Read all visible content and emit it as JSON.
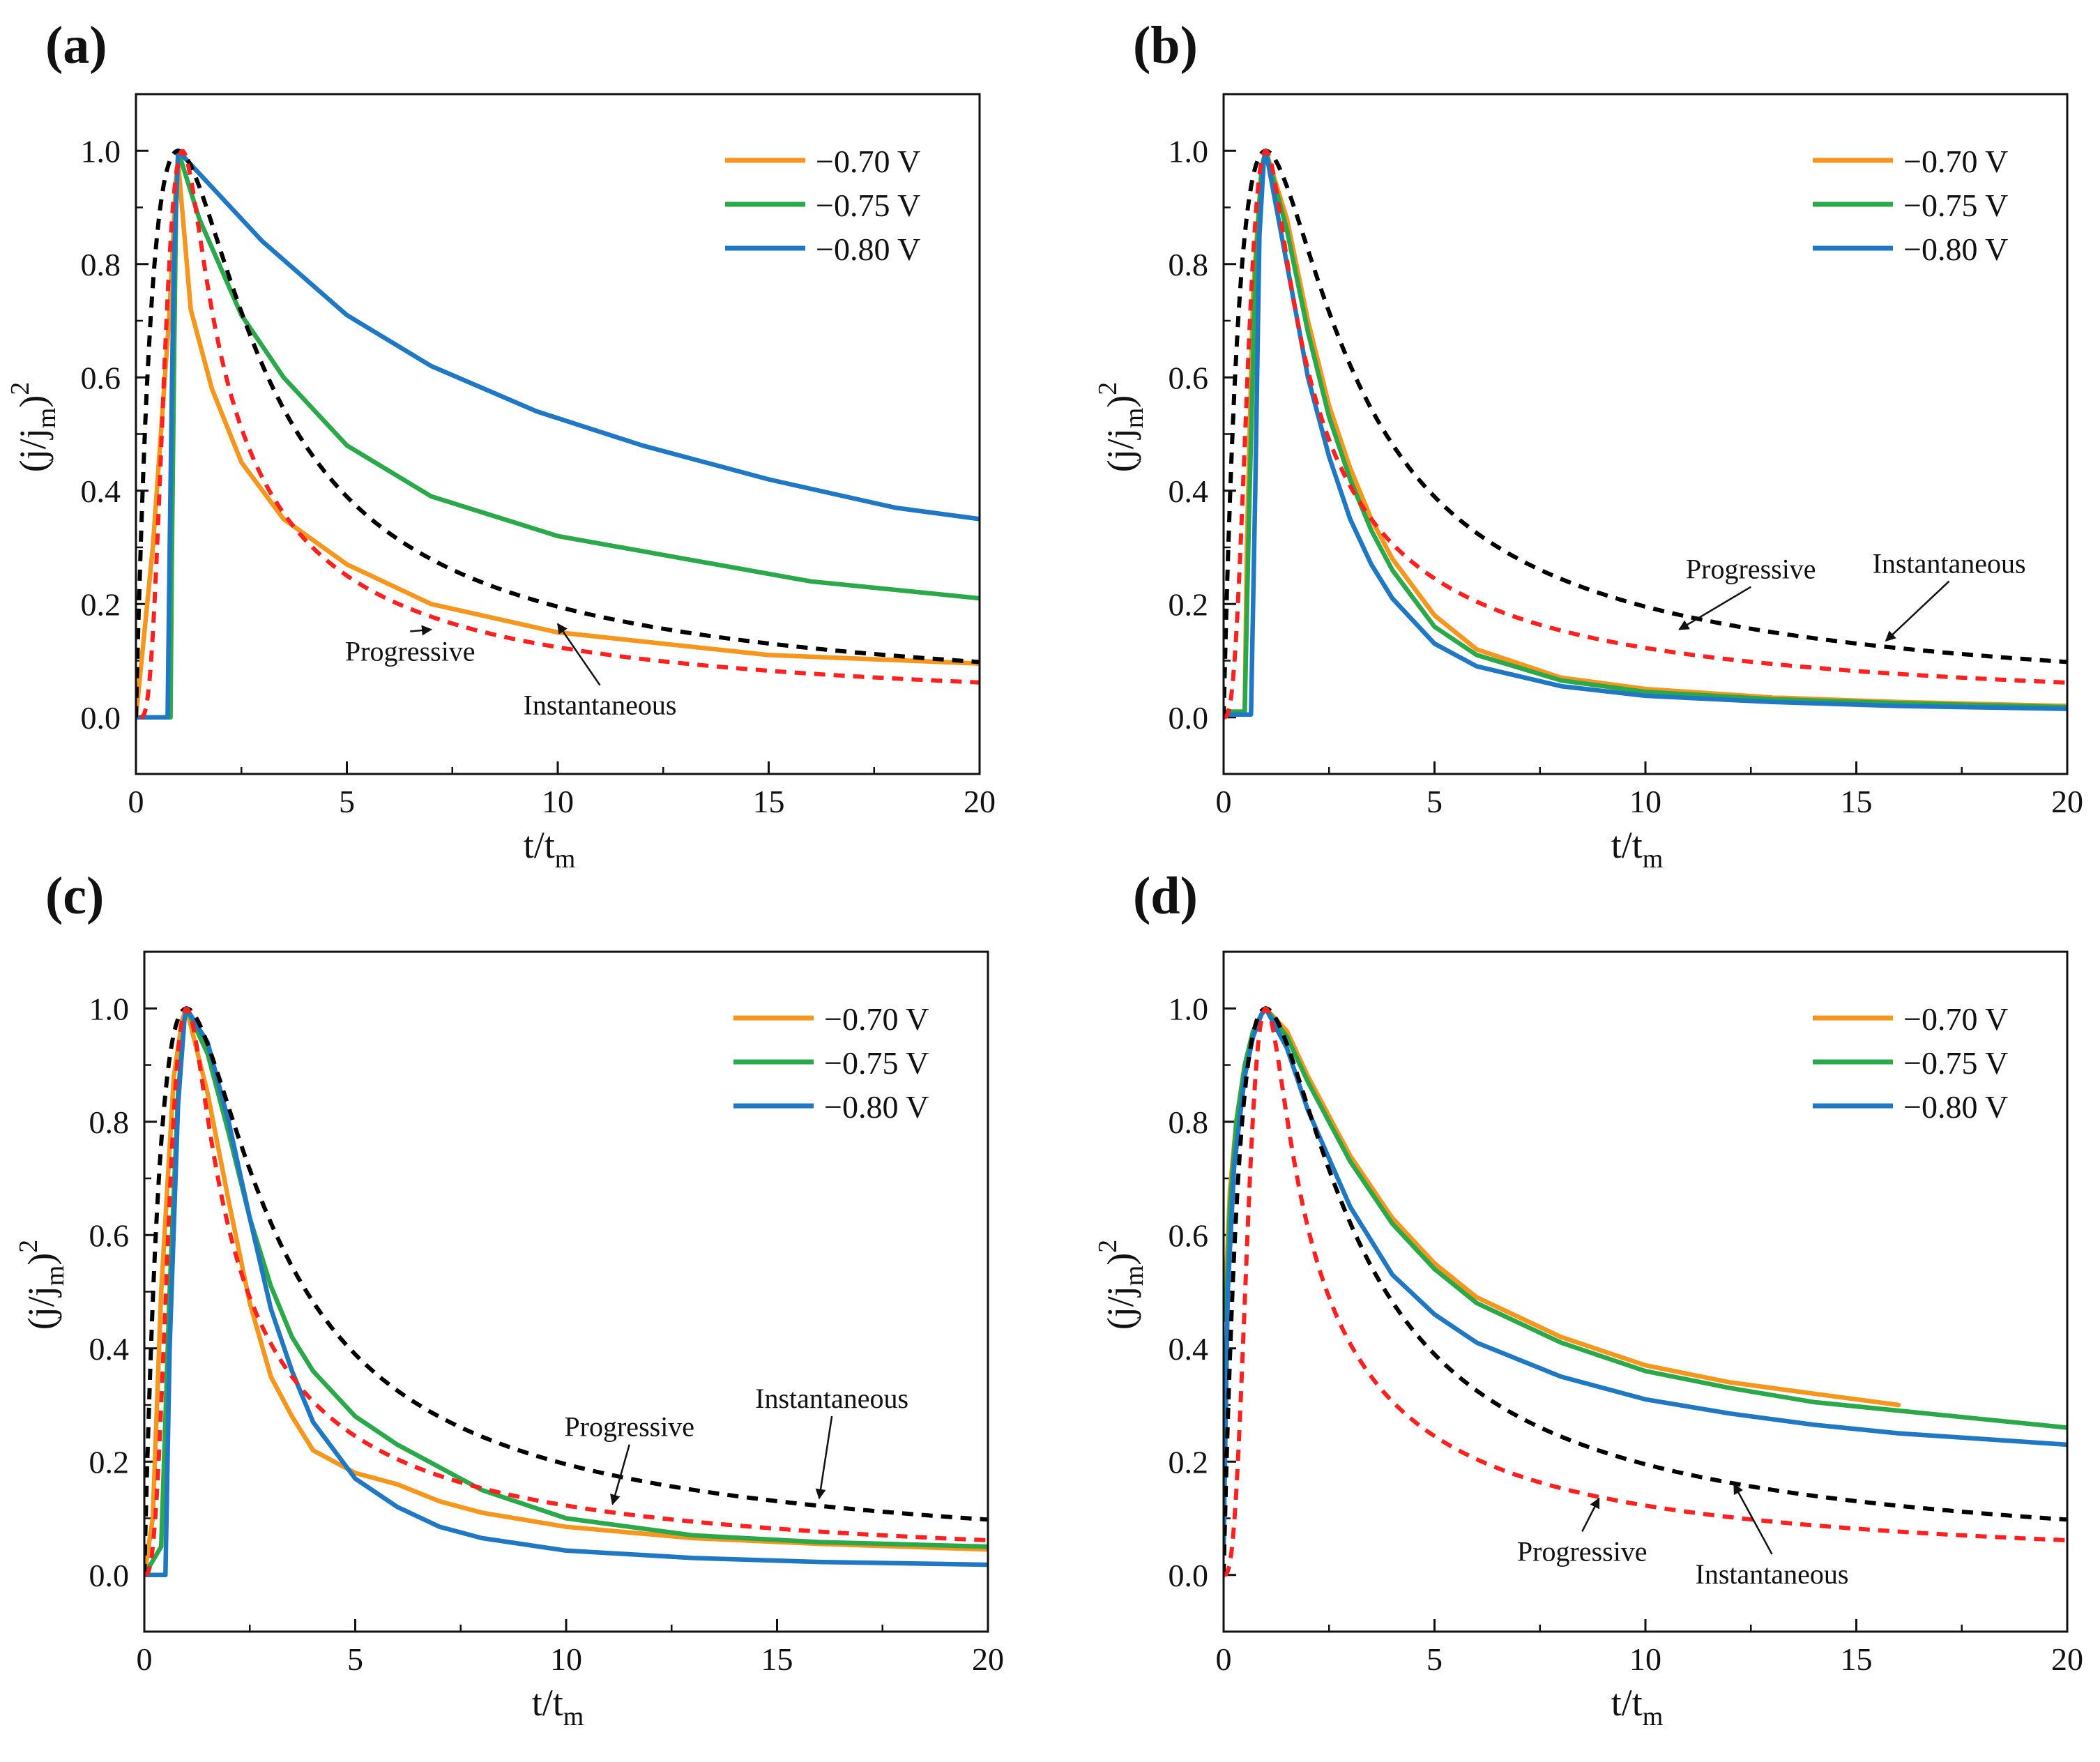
{
  "figure": {
    "colors": {
      "v070": "#f5961e",
      "v075": "#2aa84a",
      "v080": "#1f78c1",
      "instantaneous": "#000000",
      "progressive": "#ff2020"
    }
  },
  "chart_data": [
    {
      "panel": "(a)",
      "type": "line",
      "xlabel": "t/t",
      "xlabel_sub": "m",
      "ylabel_main": "(j/j",
      "ylabel_sub": "m",
      "ylabel_close": ")",
      "ylabel_sup": "2",
      "xlim": [
        0,
        20
      ],
      "ylim": [
        -0.1,
        1.1
      ],
      "xticks": [
        "0",
        "5",
        "10",
        "15",
        "20"
      ],
      "yticks": [
        "0.0",
        "0.2",
        "0.4",
        "0.6",
        "0.8",
        "1.0"
      ],
      "legend": {
        "position": "top-right",
        "entries": [
          "−0.70 V",
          "−0.75 V",
          "−0.80 V"
        ]
      },
      "series": [
        {
          "name": "−0.70 V",
          "color": "#f5961e",
          "style": "solid",
          "x": [
            0,
            0.4,
            0.8,
            0.95,
            1.0,
            1.3,
            1.8,
            2.5,
            3.5,
            5,
            7,
            10,
            15,
            20
          ],
          "y": [
            0,
            0.3,
            0.72,
            0.95,
            0.98,
            0.72,
            0.58,
            0.45,
            0.35,
            0.27,
            0.2,
            0.15,
            0.11,
            0.095
          ]
        },
        {
          "name": "−0.75 V",
          "color": "#2aa84a",
          "style": "solid",
          "x": [
            0,
            0.82,
            0.85,
            0.9,
            0.95,
            1.0,
            1.5,
            2.5,
            3.5,
            5,
            7,
            10,
            13,
            16,
            20
          ],
          "y": [
            0,
            0,
            0.27,
            0.6,
            0.9,
            1.0,
            0.88,
            0.71,
            0.6,
            0.48,
            0.39,
            0.32,
            0.28,
            0.24,
            0.21
          ]
        },
        {
          "name": "−0.80 V",
          "color": "#1f78c1",
          "style": "solid",
          "x": [
            0,
            0.75,
            0.8,
            0.85,
            0.9,
            1.0,
            2,
            3,
            5,
            7,
            9.5,
            12,
            15,
            18,
            20
          ],
          "y": [
            0,
            0,
            0.3,
            0.57,
            0.8,
            1.0,
            0.92,
            0.84,
            0.71,
            0.62,
            0.54,
            0.48,
            0.42,
            0.37,
            0.35
          ]
        },
        {
          "name": "Instantaneous",
          "color": "#000000",
          "style": "dashed",
          "model": "instantaneous",
          "t_shift": 0
        },
        {
          "name": "Progressive",
          "color": "#ff2020",
          "style": "dashed",
          "model": "progressive",
          "t_shift": 0.1
        }
      ],
      "annotations": [
        {
          "text": "Progressive",
          "x": 6.5,
          "y": 0.1,
          "arrow_x": 7.0,
          "arrow_y": 0.155
        },
        {
          "text": "Instantaneous",
          "x": 11.0,
          "y": 0.005,
          "arrow_x": 10.0,
          "arrow_y": 0.165
        }
      ]
    },
    {
      "panel": "(b)",
      "type": "line",
      "xlabel": "t/t",
      "xlabel_sub": "m",
      "ylabel_main": "(j/j",
      "ylabel_sub": "m",
      "ylabel_close": ")",
      "ylabel_sup": "2",
      "xlim": [
        0,
        20
      ],
      "ylim": [
        -0.1,
        1.1
      ],
      "xticks": [
        "0",
        "5",
        "10",
        "15",
        "20"
      ],
      "yticks": [
        "0.0",
        "0.2",
        "0.4",
        "0.6",
        "0.8",
        "1.0"
      ],
      "legend": {
        "position": "top-right",
        "entries": [
          "−0.70 V",
          "−0.75 V",
          "−0.80 V"
        ]
      },
      "series": [
        {
          "name": "−0.70 V",
          "color": "#f5961e",
          "style": "solid",
          "x": [
            0,
            0.5,
            0.55,
            0.7,
            0.9,
            1.0,
            1.5,
            2,
            2.5,
            3,
            3.5,
            4,
            5,
            6,
            8,
            10,
            13,
            16,
            20
          ],
          "y": [
            0.01,
            0.01,
            0.3,
            0.75,
            0.97,
            1.0,
            0.88,
            0.7,
            0.55,
            0.44,
            0.35,
            0.28,
            0.18,
            0.12,
            0.07,
            0.05,
            0.035,
            0.027,
            0.02
          ]
        },
        {
          "name": "−0.75 V",
          "color": "#2aa84a",
          "style": "solid",
          "x": [
            0,
            0.5,
            0.6,
            0.75,
            0.9,
            1.0,
            1.5,
            2,
            2.5,
            3,
            3.5,
            4,
            5,
            6,
            8,
            10,
            13,
            16,
            20
          ],
          "y": [
            0.01,
            0.01,
            0.35,
            0.78,
            0.97,
            1.0,
            0.86,
            0.68,
            0.53,
            0.42,
            0.33,
            0.26,
            0.16,
            0.11,
            0.065,
            0.045,
            0.032,
            0.025,
            0.018
          ]
        },
        {
          "name": "−0.80 V",
          "color": "#1f78c1",
          "style": "solid",
          "x": [
            0,
            0.65,
            0.75,
            0.85,
            0.95,
            1.0,
            1.5,
            2,
            2.5,
            3,
            3.5,
            4,
            5,
            6,
            8,
            10,
            13,
            16,
            20
          ],
          "y": [
            0.005,
            0.005,
            0.4,
            0.85,
            0.98,
            1.0,
            0.8,
            0.6,
            0.46,
            0.35,
            0.27,
            0.21,
            0.13,
            0.09,
            0.055,
            0.038,
            0.027,
            0.02,
            0.015
          ]
        },
        {
          "name": "Instantaneous",
          "color": "#000000",
          "style": "dashed",
          "model": "instantaneous",
          "t_shift": 0
        },
        {
          "name": "Progressive",
          "color": "#ff2020",
          "style": "dashed",
          "model": "progressive",
          "t_shift": 0
        }
      ],
      "annotations": [
        {
          "text": "Progressive",
          "x": 12.5,
          "y": 0.245,
          "arrow_x": 10.8,
          "arrow_y": 0.155
        },
        {
          "text": "Instantaneous",
          "x": 17.2,
          "y": 0.255,
          "arrow_x": 15.7,
          "arrow_y": 0.135
        }
      ]
    },
    {
      "panel": "(c)",
      "type": "line",
      "xlabel": "t/t",
      "xlabel_sub": "m",
      "ylabel_main": "(j/j",
      "ylabel_sub": "m",
      "ylabel_close": ")",
      "ylabel_sup": "2",
      "xlim": [
        0,
        20
      ],
      "ylim": [
        -0.1,
        1.1
      ],
      "xticks": [
        "0",
        "5",
        "10",
        "15",
        "20"
      ],
      "yticks": [
        "0.0",
        "0.2",
        "0.4",
        "0.6",
        "0.8",
        "1.0"
      ],
      "legend": {
        "position": "top-right",
        "entries": [
          "−0.70 V",
          "−0.75 V",
          "−0.80 V"
        ]
      },
      "series": [
        {
          "name": "−0.70 V",
          "color": "#f5961e",
          "style": "solid",
          "x": [
            0,
            0.2,
            0.4,
            0.7,
            0.9,
            1.0,
            1.5,
            2,
            2.5,
            3,
            3.5,
            4,
            5,
            6,
            7,
            8,
            10,
            13,
            16,
            20
          ],
          "y": [
            0,
            0.1,
            0.5,
            0.88,
            0.98,
            1.0,
            0.85,
            0.66,
            0.48,
            0.35,
            0.28,
            0.22,
            0.18,
            0.16,
            0.13,
            0.11,
            0.085,
            0.065,
            0.055,
            0.045
          ]
        },
        {
          "name": "−0.75 V",
          "color": "#2aa84a",
          "style": "solid",
          "x": [
            0,
            0.4,
            0.6,
            0.8,
            0.95,
            1.0,
            1.5,
            2,
            2.5,
            3,
            3.5,
            4,
            5,
            6,
            7,
            8,
            10,
            13,
            16,
            20
          ],
          "y": [
            0,
            0.05,
            0.5,
            0.85,
            0.98,
            1.0,
            0.92,
            0.78,
            0.63,
            0.51,
            0.42,
            0.36,
            0.28,
            0.23,
            0.19,
            0.15,
            0.1,
            0.07,
            0.058,
            0.05
          ]
        },
        {
          "name": "−0.80 V",
          "color": "#1f78c1",
          "style": "solid",
          "x": [
            0,
            0.5,
            0.6,
            0.8,
            0.95,
            1.0,
            1.5,
            2,
            2.5,
            3,
            3.5,
            4,
            5,
            6,
            7,
            8,
            10,
            13,
            16,
            20
          ],
          "y": [
            0,
            0,
            0.4,
            0.83,
            0.98,
            1.0,
            0.94,
            0.8,
            0.63,
            0.47,
            0.36,
            0.27,
            0.17,
            0.12,
            0.085,
            0.065,
            0.043,
            0.03,
            0.023,
            0.018
          ]
        },
        {
          "name": "Instantaneous",
          "color": "#000000",
          "style": "dashed",
          "model": "instantaneous",
          "t_shift": 0
        },
        {
          "name": "Progressive",
          "color": "#ff2020",
          "style": "dashed",
          "model": "progressive",
          "t_shift": 0
        }
      ],
      "annotations": [
        {
          "text": "Progressive",
          "x": 11.5,
          "y": 0.245,
          "arrow_x": 11.1,
          "arrow_y": 0.125
        },
        {
          "text": "Instantaneous",
          "x": 16.3,
          "y": 0.295,
          "arrow_x": 16.0,
          "arrow_y": 0.135
        }
      ]
    },
    {
      "panel": "(d)",
      "type": "line",
      "xlabel": "t/t",
      "xlabel_sub": "m",
      "ylabel_main": "(j/j",
      "ylabel_sub": "m",
      "ylabel_close": ")",
      "ylabel_sup": "2",
      "xlim": [
        0,
        20
      ],
      "ylim": [
        -0.1,
        1.1
      ],
      "xticks": [
        "0",
        "5",
        "10",
        "15",
        "20"
      ],
      "yticks": [
        "0.0",
        "0.2",
        "0.4",
        "0.6",
        "0.8",
        "1.0"
      ],
      "legend": {
        "position": "top-right",
        "entries": [
          "−0.70 V",
          "−0.75 V",
          "−0.80 V"
        ]
      },
      "series": [
        {
          "name": "−0.70 V",
          "color": "#f5961e",
          "style": "solid",
          "x": [
            0.05,
            0.15,
            0.3,
            0.5,
            0.7,
            0.9,
            1.0,
            1.5,
            2,
            3,
            4,
            5,
            6,
            8,
            10,
            12,
            14,
            16
          ],
          "y": [
            0.5,
            0.68,
            0.8,
            0.9,
            0.96,
            0.99,
            1.0,
            0.96,
            0.88,
            0.74,
            0.63,
            0.55,
            0.49,
            0.42,
            0.37,
            0.34,
            0.32,
            0.3
          ]
        },
        {
          "name": "−0.75 V",
          "color": "#2aa84a",
          "style": "solid",
          "x": [
            0.05,
            0.15,
            0.3,
            0.5,
            0.7,
            0.9,
            1.0,
            1.5,
            2,
            3,
            4,
            5,
            6,
            8,
            10,
            12,
            14,
            16,
            18,
            20
          ],
          "y": [
            0.45,
            0.65,
            0.8,
            0.9,
            0.96,
            0.99,
            1.0,
            0.95,
            0.87,
            0.73,
            0.62,
            0.54,
            0.48,
            0.41,
            0.36,
            0.33,
            0.305,
            0.29,
            0.275,
            0.26
          ]
        },
        {
          "name": "−0.80 V",
          "color": "#1f78c1",
          "style": "solid",
          "x": [
            0,
            0.1,
            0.25,
            0.5,
            0.7,
            0.9,
            1.0,
            1.5,
            2,
            3,
            4,
            5,
            6,
            8,
            10,
            12,
            14,
            16,
            18,
            20
          ],
          "y": [
            0.05,
            0.5,
            0.72,
            0.88,
            0.95,
            0.99,
            1.0,
            0.93,
            0.82,
            0.65,
            0.53,
            0.46,
            0.41,
            0.35,
            0.31,
            0.285,
            0.265,
            0.25,
            0.24,
            0.23
          ]
        },
        {
          "name": "Instantaneous",
          "color": "#000000",
          "style": "dashed",
          "model": "instantaneous",
          "t_shift": 0
        },
        {
          "name": "Progressive",
          "color": "#ff2020",
          "style": "dashed",
          "model": "progressive",
          "t_shift": 0
        }
      ],
      "annotations": [
        {
          "text": "Progressive",
          "x": 8.5,
          "y": 0.025,
          "arrow_x": 8.9,
          "arrow_y": 0.135
        },
        {
          "text": "Instantaneous",
          "x": 13.0,
          "y": -0.015,
          "arrow_x": 12.1,
          "arrow_y": 0.16
        }
      ]
    }
  ]
}
